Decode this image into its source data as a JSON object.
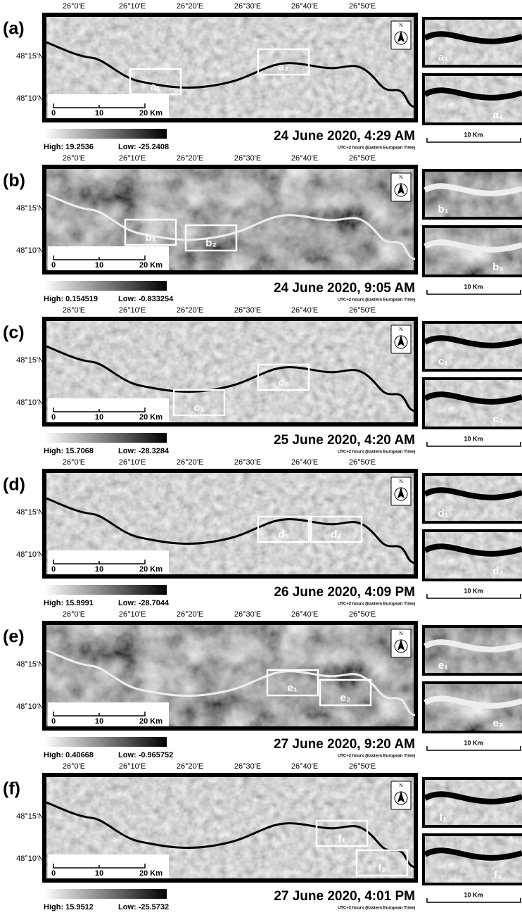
{
  "panels": [
    {
      "label": "(a)",
      "lon_labels": [
        "26°0'E",
        "26°10'E",
        "26°20'E",
        "26°30'E",
        "26°40'E",
        "26°50'E"
      ],
      "lat_labels": [
        "48°15'N",
        "48°10'N"
      ],
      "scale_bar": [
        "0",
        "10",
        "20 Km"
      ],
      "legend": {
        "high": "High: 19.2536",
        "low": "Low: -25.2408"
      },
      "date": "24 June 2020, 4:29 AM",
      "timezone": "UTC+2 hours (Eastern European Time)",
      "insets": [
        "a₁",
        "a₂"
      ],
      "inset_scale": "10 Km"
    },
    {
      "label": "(b)",
      "lon_labels": [
        "26°0'E",
        "26°10'E",
        "26°20'E",
        "26°30'E",
        "26°40'E",
        "26°50'E"
      ],
      "lat_labels": [
        "48°15'N",
        "48°10'N"
      ],
      "scale_bar": [
        "0",
        "10",
        "20 Km"
      ],
      "legend": {
        "high": "High: 0.154519",
        "low": "Low: -0.833254"
      },
      "date": "24 June 2020, 9:05 AM",
      "timezone": "UTC+2 hours (Eastern European Time)",
      "insets": [
        "b₁",
        "b₂"
      ],
      "inset_scale": "10 Km"
    },
    {
      "label": "(c)",
      "lon_labels": [
        "26°0'E",
        "26°10'E",
        "26°20'E",
        "26°30'E",
        "26°40'E",
        "26°50'E"
      ],
      "lat_labels": [
        "48°15'N",
        "48°10'N"
      ],
      "scale_bar": [
        "0",
        "10",
        "20 Km"
      ],
      "legend": {
        "high": "High: 15.7068",
        "low": "Low: -28.3284"
      },
      "date": "25 June 2020, 4:20 AM",
      "timezone": "UTC+2 hours (Eastern European Time)",
      "insets": [
        "c₁",
        "c₂"
      ],
      "inset_scale": "10 Km"
    },
    {
      "label": "(d)",
      "lon_labels": [
        "26°0'E",
        "26°10'E",
        "26°20'E",
        "26°30'E",
        "26°40'E",
        "26°50'E"
      ],
      "lat_labels": [
        "48°15'N",
        "48°10'N"
      ],
      "scale_bar": [
        "0",
        "10",
        "20 Km"
      ],
      "legend": {
        "high": "High: 15.9991",
        "low": "Low: -28.7044"
      },
      "date": "26 June 2020, 4:09 PM",
      "timezone": "UTC+2 hours (Eastern European Time)",
      "insets": [
        "d₁",
        "d₂"
      ],
      "inset_scale": "10 Km"
    },
    {
      "label": "(e)",
      "lon_labels": [
        "26°0'E",
        "26°10'E",
        "26°20'E",
        "26°30'E",
        "26°40'E",
        "26°50'E"
      ],
      "lat_labels": [
        "48°15'N",
        "48°10'N"
      ],
      "scale_bar": [
        "0",
        "10",
        "20 Km"
      ],
      "legend": {
        "high": "High: 0.40668",
        "low": "Low: -0.965752"
      },
      "date": "27 June 2020, 9:20 AM",
      "timezone": "UTC+2 hours (Eastern European Time)",
      "insets": [
        "e₁",
        "e₂"
      ],
      "inset_scale": "10 Km"
    },
    {
      "label": "(f)",
      "lon_labels": [
        "26°0'E",
        "26°10'E",
        "26°20'E",
        "26°30'E",
        "26°40'E",
        "26°50'E"
      ],
      "lat_labels": [
        "48°15'N",
        "48°10'N"
      ],
      "scale_bar": [
        "0",
        "10",
        "20 Km"
      ],
      "legend": {
        "high": "High: 15.9512",
        "low": "Low: -25.5732"
      },
      "date": "27 June 2020, 4:01 PM",
      "timezone": "UTC+2 hours (Eastern European Time)",
      "insets": [
        "f₁",
        "f₂"
      ],
      "inset_scale": "10 Km"
    }
  ]
}
